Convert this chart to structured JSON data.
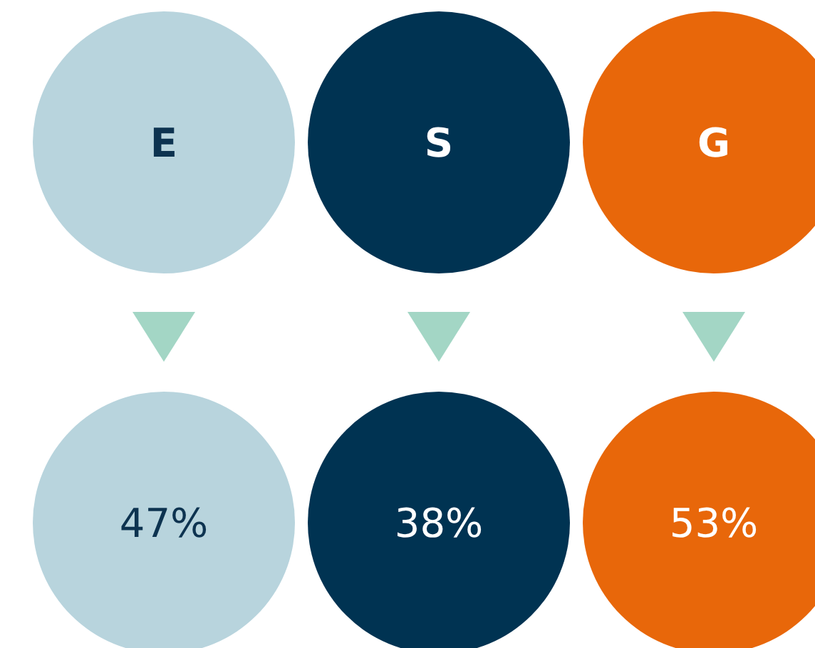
{
  "chart_data": {
    "type": "other",
    "categories": [
      "E",
      "S",
      "G"
    ],
    "values": [
      47,
      38,
      53
    ],
    "value_labels": [
      "47%",
      "38%",
      "53%"
    ],
    "colors": [
      "#b8d4dd",
      "#003352",
      "#e8670a"
    ]
  }
}
